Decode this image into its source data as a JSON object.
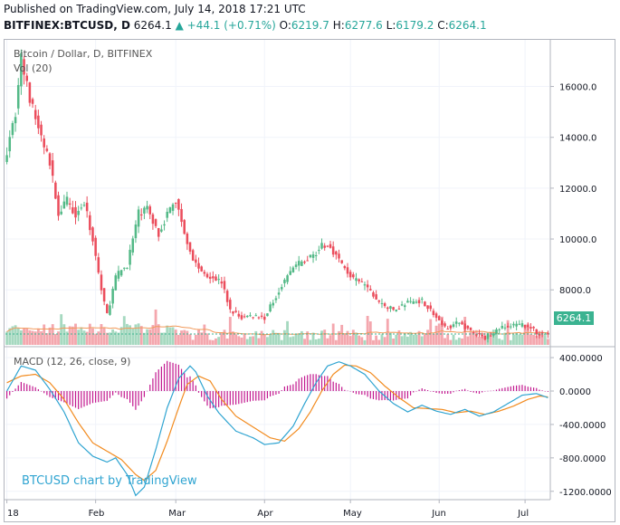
{
  "header": {
    "published": "Published on TradingView.com, July 14, 2018 17:21 UTC",
    "symbol": "BITFINEX:BTCUSD, D",
    "last": "6264.1",
    "change": "+44.1 (+0.71%)",
    "o_label": "O:",
    "o_value": "6219.7",
    "h_label": "H:",
    "h_value": "6277.6",
    "l_label": "L:",
    "l_value": "6179.2",
    "c_label": "C:",
    "c_value": "6264.1"
  },
  "overlay": {
    "title": "Bitcoin / Dollar, D, BITFINEX",
    "volume": "Vol (20)",
    "macd": "MACD (12, 26, close, 9)",
    "watermark": "BTCUSD chart by TradingView",
    "last_price_label": "6264.1"
  },
  "colors": {
    "up": "#53b987",
    "down": "#eb4d5c",
    "vol_up": "#a6d9c0",
    "vol_down": "#f4a7ae",
    "vol_ma": "#f29a5a",
    "macd_line": "#2fa4d1",
    "signal_line": "#f28b1f",
    "histogram": "#c2188f",
    "last_price": "#3bb391"
  },
  "chart_data": [
    {
      "type": "candlestick",
      "title": "Bitcoin / Dollar, D, BITFINEX",
      "x_ticks": [
        "18",
        "Feb",
        "Mar",
        "Apr",
        "May",
        "Jun",
        "Jul"
      ],
      "y_ticks": [
        "16000.0",
        "14000.0",
        "12000.0",
        "10000.0",
        "8000.0"
      ],
      "ylim": [
        5800,
        17800
      ],
      "last_price": 6264.1,
      "anchors": [
        {
          "day": 0,
          "price": 13500
        },
        {
          "day": 3,
          "price": 15000
        },
        {
          "day": 5,
          "price": 17100
        },
        {
          "day": 8,
          "price": 15500
        },
        {
          "day": 12,
          "price": 14000
        },
        {
          "day": 15,
          "price": 13000
        },
        {
          "day": 18,
          "price": 11000
        },
        {
          "day": 21,
          "price": 11500
        },
        {
          "day": 24,
          "price": 11000
        },
        {
          "day": 27,
          "price": 11400
        },
        {
          "day": 30,
          "price": 10000
        },
        {
          "day": 33,
          "price": 8000
        },
        {
          "day": 35,
          "price": 7000
        },
        {
          "day": 38,
          "price": 8500
        },
        {
          "day": 42,
          "price": 9000
        },
        {
          "day": 46,
          "price": 11000
        },
        {
          "day": 49,
          "price": 11200
        },
        {
          "day": 53,
          "price": 10200
        },
        {
          "day": 56,
          "price": 11000
        },
        {
          "day": 59,
          "price": 11500
        },
        {
          "day": 62,
          "price": 10300
        },
        {
          "day": 65,
          "price": 9200
        },
        {
          "day": 68,
          "price": 8700
        },
        {
          "day": 72,
          "price": 8500
        },
        {
          "day": 75,
          "price": 8300
        },
        {
          "day": 78,
          "price": 7200
        },
        {
          "day": 82,
          "price": 6900
        },
        {
          "day": 86,
          "price": 7000
        },
        {
          "day": 90,
          "price": 6900
        },
        {
          "day": 95,
          "price": 8000
        },
        {
          "day": 100,
          "price": 8900
        },
        {
          "day": 105,
          "price": 9200
        },
        {
          "day": 110,
          "price": 9700
        },
        {
          "day": 113,
          "price": 9700
        },
        {
          "day": 117,
          "price": 9000
        },
        {
          "day": 121,
          "price": 8400
        },
        {
          "day": 125,
          "price": 8200
        },
        {
          "day": 130,
          "price": 7500
        },
        {
          "day": 135,
          "price": 7200
        },
        {
          "day": 140,
          "price": 7500
        },
        {
          "day": 145,
          "price": 7600
        },
        {
          "day": 150,
          "price": 6900
        },
        {
          "day": 153,
          "price": 6500
        },
        {
          "day": 158,
          "price": 6700
        },
        {
          "day": 163,
          "price": 6300
        },
        {
          "day": 167,
          "price": 6100
        },
        {
          "day": 172,
          "price": 6500
        },
        {
          "day": 178,
          "price": 6600
        },
        {
          "day": 182,
          "price": 6600
        },
        {
          "day": 185,
          "price": 6300
        },
        {
          "day": 189,
          "price": 6264
        }
      ]
    },
    {
      "type": "bar",
      "title": "Vol (20)",
      "note": "daily volume, relative scale, colored by candle direction"
    },
    {
      "type": "line",
      "title": "MACD (12, 26, close, 9)",
      "y_ticks": [
        "400.0000",
        "0.0000",
        "-400.0000",
        "-800.0000",
        "-1200.0000"
      ],
      "ylim": [
        -1300,
        520
      ],
      "series": [
        {
          "name": "MACD",
          "anchors": [
            {
              "day": 0,
              "value": 0
            },
            {
              "day": 5,
              "value": 300
            },
            {
              "day": 10,
              "value": 250
            },
            {
              "day": 15,
              "value": 20
            },
            {
              "day": 20,
              "value": -250
            },
            {
              "day": 25,
              "value": -620
            },
            {
              "day": 30,
              "value": -780
            },
            {
              "day": 35,
              "value": -850
            },
            {
              "day": 38,
              "value": -800
            },
            {
              "day": 42,
              "value": -1000
            },
            {
              "day": 45,
              "value": -1250
            },
            {
              "day": 48,
              "value": -1150
            },
            {
              "day": 52,
              "value": -700
            },
            {
              "day": 56,
              "value": -200
            },
            {
              "day": 60,
              "value": 150
            },
            {
              "day": 64,
              "value": 300
            },
            {
              "day": 66,
              "value": 230
            },
            {
              "day": 70,
              "value": -60
            },
            {
              "day": 74,
              "value": -260
            },
            {
              "day": 80,
              "value": -480
            },
            {
              "day": 86,
              "value": -560
            },
            {
              "day": 90,
              "value": -640
            },
            {
              "day": 95,
              "value": -620
            },
            {
              "day": 100,
              "value": -420
            },
            {
              "day": 104,
              "value": -150
            },
            {
              "day": 108,
              "value": 100
            },
            {
              "day": 112,
              "value": 300
            },
            {
              "day": 116,
              "value": 350
            },
            {
              "day": 120,
              "value": 300
            },
            {
              "day": 125,
              "value": 200
            },
            {
              "day": 130,
              "value": 0
            },
            {
              "day": 135,
              "value": -150
            },
            {
              "day": 140,
              "value": -250
            },
            {
              "day": 145,
              "value": -170
            },
            {
              "day": 150,
              "value": -240
            },
            {
              "day": 155,
              "value": -280
            },
            {
              "day": 160,
              "value": -220
            },
            {
              "day": 165,
              "value": -300
            },
            {
              "day": 170,
              "value": -250
            },
            {
              "day": 175,
              "value": -150
            },
            {
              "day": 180,
              "value": -50
            },
            {
              "day": 185,
              "value": -30
            },
            {
              "day": 189,
              "value": -80
            }
          ]
        },
        {
          "name": "Signal",
          "anchors": [
            {
              "day": 0,
              "value": 100
            },
            {
              "day": 5,
              "value": 180
            },
            {
              "day": 10,
              "value": 200
            },
            {
              "day": 15,
              "value": 100
            },
            {
              "day": 20,
              "value": -100
            },
            {
              "day": 25,
              "value": -380
            },
            {
              "day": 30,
              "value": -620
            },
            {
              "day": 35,
              "value": -720
            },
            {
              "day": 40,
              "value": -820
            },
            {
              "day": 45,
              "value": -1000
            },
            {
              "day": 48,
              "value": -1070
            },
            {
              "day": 52,
              "value": -950
            },
            {
              "day": 56,
              "value": -600
            },
            {
              "day": 60,
              "value": -200
            },
            {
              "day": 63,
              "value": 80
            },
            {
              "day": 67,
              "value": 180
            },
            {
              "day": 71,
              "value": 120
            },
            {
              "day": 75,
              "value": -100
            },
            {
              "day": 80,
              "value": -300
            },
            {
              "day": 86,
              "value": -430
            },
            {
              "day": 92,
              "value": -560
            },
            {
              "day": 97,
              "value": -600
            },
            {
              "day": 102,
              "value": -450
            },
            {
              "day": 106,
              "value": -250
            },
            {
              "day": 110,
              "value": 0
            },
            {
              "day": 114,
              "value": 200
            },
            {
              "day": 118,
              "value": 310
            },
            {
              "day": 122,
              "value": 300
            },
            {
              "day": 127,
              "value": 220
            },
            {
              "day": 132,
              "value": 60
            },
            {
              "day": 137,
              "value": -80
            },
            {
              "day": 142,
              "value": -200
            },
            {
              "day": 147,
              "value": -210
            },
            {
              "day": 152,
              "value": -220
            },
            {
              "day": 157,
              "value": -260
            },
            {
              "day": 162,
              "value": -240
            },
            {
              "day": 167,
              "value": -280
            },
            {
              "day": 172,
              "value": -240
            },
            {
              "day": 177,
              "value": -180
            },
            {
              "day": 182,
              "value": -100
            },
            {
              "day": 186,
              "value": -60
            },
            {
              "day": 189,
              "value": -70
            }
          ]
        }
      ]
    }
  ]
}
